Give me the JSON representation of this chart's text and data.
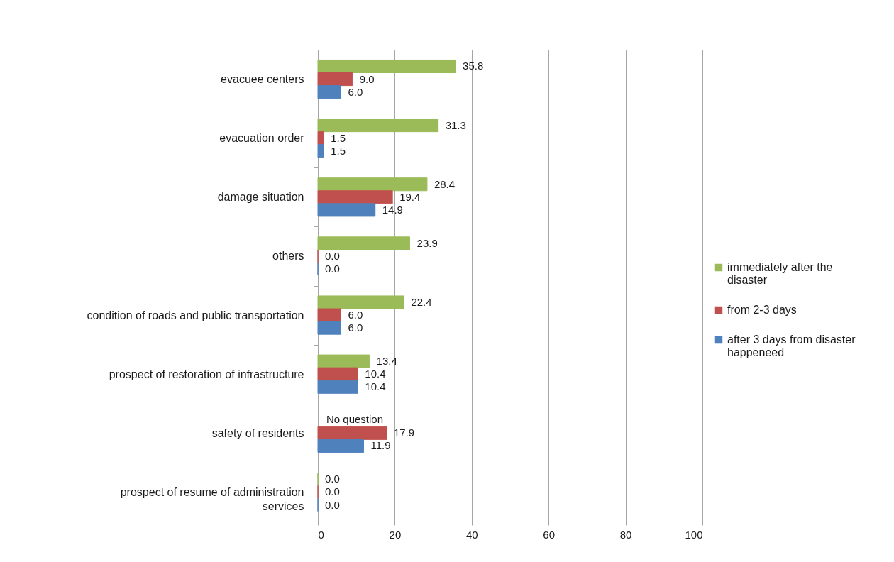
{
  "chart_data": {
    "type": "bar",
    "orientation": "horizontal",
    "categories": [
      "evacuee centers",
      "evacuation order",
      "damage situation",
      "others",
      "condition of roads and public transportation",
      "prospect of restoration of infrastructure",
      "safety of residents",
      "prospect of resume of administration services"
    ],
    "series": [
      {
        "name": "immediately after the disaster",
        "color": "#9bbb59",
        "values": [
          35.8,
          31.3,
          28.4,
          23.9,
          22.4,
          13.4,
          null,
          0.0
        ],
        "value_labels": [
          "35.8",
          "31.3",
          "28.4",
          "23.9",
          "22.4",
          "13.4",
          null,
          "0.0"
        ]
      },
      {
        "name": "from 2-3 days",
        "color": "#c0504d",
        "values": [
          9.0,
          1.5,
          19.4,
          0.0,
          6.0,
          10.4,
          17.9,
          0.0
        ],
        "value_labels": [
          "9.0",
          "1.5",
          "19.4",
          "0.0",
          "6.0",
          "10.4",
          "17.9",
          "0.0"
        ]
      },
      {
        "name": "after 3 days  from disaster happeneed",
        "color": "#4f81bd",
        "values": [
          6.0,
          1.5,
          14.9,
          0.0,
          6.0,
          10.4,
          11.9,
          0.0
        ],
        "value_labels": [
          "6.0",
          "1.5",
          "14.9",
          "0.0",
          "6.0",
          "10.4",
          "11.9",
          "0.0"
        ]
      }
    ],
    "xlim": [
      0,
      100
    ],
    "xticks": [
      0,
      20,
      40,
      60,
      80,
      100
    ],
    "grid": "x",
    "legend": "right",
    "annotations": [
      {
        "text": "No question",
        "x": 0,
        "y": "safety of residents"
      }
    ]
  }
}
